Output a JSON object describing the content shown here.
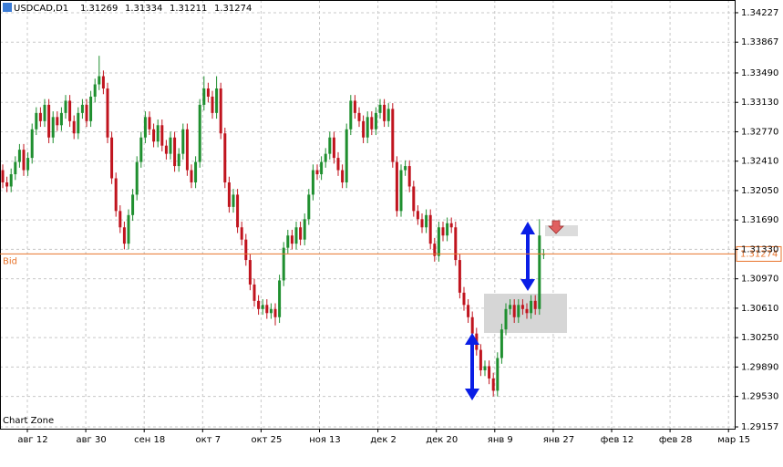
{
  "chart_data": {
    "type": "candlestick",
    "symbol": "USDCAD,D1",
    "open": [
      1.323,
      1.3215,
      1.321,
      1.3225,
      1.324,
      1.3255,
      1.323,
      1.3245,
      1.328,
      1.33,
      1.329,
      1.331,
      1.327,
      1.3295,
      1.3285,
      1.33,
      1.3315,
      1.329,
      1.3275,
      1.33,
      1.331,
      1.329,
      1.332,
      1.3335,
      1.3345,
      1.333,
      1.327,
      1.322,
      1.318,
      1.316,
      1.314,
      1.3175,
      1.32,
      1.324,
      1.327,
      1.3295,
      1.328,
      1.3265,
      1.3285,
      1.326,
      1.325,
      1.327,
      1.3235,
      1.325,
      1.328,
      1.323,
      1.3215,
      1.324,
      1.331,
      1.333,
      1.332,
      1.33,
      1.333,
      1.3275,
      1.3215,
      1.3185,
      1.32,
      1.316,
      1.3145,
      1.312,
      1.309,
      1.307,
      1.306,
      1.3065,
      1.3055,
      1.306,
      1.305,
      1.3095,
      1.3135,
      1.315,
      1.314,
      1.316,
      1.3145,
      1.317,
      1.32,
      1.323,
      1.3225,
      1.324,
      1.325,
      1.327,
      1.3245,
      1.323,
      1.3215,
      1.328,
      1.3315,
      1.33,
      1.329,
      1.327,
      1.3295,
      1.328,
      1.33,
      1.331,
      1.329,
      1.3305,
      1.324,
      1.318,
      1.323,
      1.3235,
      1.321,
      1.318,
      1.317,
      1.316,
      1.3175,
      1.314,
      1.3125,
      1.316,
      1.315,
      1.3165,
      1.316,
      1.312,
      1.308,
      1.3065,
      1.305,
      1.303,
      1.301,
      1.2985,
      1.299,
      1.2975,
      1.296,
      1.3,
      1.3035,
      1.306,
      1.3065,
      1.305,
      1.3065,
      1.306,
      1.3055,
      1.307,
      1.306,
      1.31269
    ],
    "high": [
      1.3237,
      1.3222,
      1.3232,
      1.3247,
      1.3262,
      1.3262,
      1.3252,
      1.3287,
      1.3307,
      1.3307,
      1.3317,
      1.3317,
      1.3302,
      1.3302,
      1.3307,
      1.3322,
      1.3322,
      1.3297,
      1.3307,
      1.3317,
      1.3317,
      1.3327,
      1.3342,
      1.337,
      1.3352,
      1.3337,
      1.3277,
      1.3227,
      1.3187,
      1.3167,
      1.3182,
      1.3207,
      1.3247,
      1.3277,
      1.3302,
      1.3302,
      1.3287,
      1.3292,
      1.3292,
      1.3267,
      1.3277,
      1.3277,
      1.3257,
      1.3287,
      1.3287,
      1.3237,
      1.3247,
      1.3317,
      1.3345,
      1.3337,
      1.3327,
      1.3345,
      1.3337,
      1.3282,
      1.3222,
      1.3207,
      1.3207,
      1.3167,
      1.3152,
      1.3127,
      1.3097,
      1.3077,
      1.3072,
      1.3072,
      1.3067,
      1.3067,
      1.3102,
      1.3142,
      1.3157,
      1.3157,
      1.3167,
      1.3167,
      1.3177,
      1.3207,
      1.3237,
      1.3237,
      1.3247,
      1.3257,
      1.3277,
      1.3277,
      1.3252,
      1.3237,
      1.3287,
      1.3322,
      1.3322,
      1.3307,
      1.3297,
      1.3302,
      1.3302,
      1.3307,
      1.3317,
      1.3317,
      1.3312,
      1.3312,
      1.3247,
      1.3237,
      1.3242,
      1.3242,
      1.3217,
      1.3187,
      1.3177,
      1.3182,
      1.3182,
      1.3147,
      1.3167,
      1.3167,
      1.3172,
      1.3172,
      1.3167,
      1.3127,
      1.3087,
      1.3072,
      1.3057,
      1.3037,
      1.3017,
      1.2997,
      1.2997,
      1.2982,
      1.3007,
      1.3042,
      1.3067,
      1.3072,
      1.3072,
      1.3072,
      1.3072,
      1.3067,
      1.3077,
      1.3077,
      1.317,
      1.31334
    ],
    "low": [
      1.3208,
      1.3203,
      1.3203,
      1.3218,
      1.3233,
      1.3223,
      1.3223,
      1.3238,
      1.3273,
      1.3283,
      1.3283,
      1.3263,
      1.3263,
      1.3278,
      1.3278,
      1.3293,
      1.3283,
      1.3268,
      1.3268,
      1.3293,
      1.3283,
      1.3283,
      1.3313,
      1.3328,
      1.3323,
      1.3263,
      1.3213,
      1.3173,
      1.3153,
      1.3133,
      1.3133,
      1.3168,
      1.3193,
      1.3233,
      1.3263,
      1.3273,
      1.3258,
      1.3258,
      1.3253,
      1.3243,
      1.3243,
      1.3228,
      1.3228,
      1.3243,
      1.3223,
      1.3208,
      1.3208,
      1.3233,
      1.3303,
      1.3313,
      1.3293,
      1.3293,
      1.3268,
      1.3208,
      1.3178,
      1.3178,
      1.3153,
      1.3138,
      1.3113,
      1.3083,
      1.3063,
      1.3053,
      1.3053,
      1.3048,
      1.3048,
      1.304,
      1.3043,
      1.3088,
      1.3128,
      1.3133,
      1.3133,
      1.3138,
      1.3138,
      1.3163,
      1.3193,
      1.3218,
      1.3218,
      1.3233,
      1.3243,
      1.3238,
      1.3223,
      1.3208,
      1.3208,
      1.3273,
      1.3293,
      1.3283,
      1.3263,
      1.3263,
      1.3273,
      1.3273,
      1.3293,
      1.3283,
      1.3283,
      1.3233,
      1.3173,
      1.3173,
      1.3223,
      1.3203,
      1.3173,
      1.3163,
      1.3153,
      1.3153,
      1.3133,
      1.3118,
      1.3118,
      1.3143,
      1.3143,
      1.3153,
      1.3113,
      1.3073,
      1.3058,
      1.3043,
      1.3023,
      1.3003,
      1.2978,
      1.2978,
      1.2968,
      1.2953,
      1.2953,
      1.2993,
      1.3028,
      1.3053,
      1.3043,
      1.3043,
      1.3053,
      1.3048,
      1.3048,
      1.3053,
      1.3053,
      1.31211
    ],
    "close": [
      1.3215,
      1.321,
      1.3225,
      1.324,
      1.3255,
      1.323,
      1.3245,
      1.328,
      1.33,
      1.329,
      1.331,
      1.327,
      1.3295,
      1.3285,
      1.33,
      1.3315,
      1.329,
      1.3275,
      1.33,
      1.331,
      1.329,
      1.332,
      1.3335,
      1.3345,
      1.333,
      1.327,
      1.322,
      1.318,
      1.316,
      1.314,
      1.3175,
      1.32,
      1.324,
      1.327,
      1.3295,
      1.328,
      1.3265,
      1.3285,
      1.326,
      1.325,
      1.327,
      1.3235,
      1.325,
      1.328,
      1.323,
      1.3215,
      1.324,
      1.331,
      1.333,
      1.332,
      1.33,
      1.333,
      1.3275,
      1.3215,
      1.3185,
      1.32,
      1.316,
      1.3145,
      1.312,
      1.309,
      1.307,
      1.306,
      1.3065,
      1.3055,
      1.306,
      1.305,
      1.3095,
      1.3135,
      1.315,
      1.314,
      1.316,
      1.3145,
      1.317,
      1.32,
      1.323,
      1.3225,
      1.324,
      1.325,
      1.327,
      1.3245,
      1.323,
      1.3215,
      1.328,
      1.3315,
      1.33,
      1.329,
      1.327,
      1.3295,
      1.328,
      1.33,
      1.331,
      1.329,
      1.3305,
      1.324,
      1.318,
      1.323,
      1.3235,
      1.321,
      1.318,
      1.317,
      1.316,
      1.3175,
      1.314,
      1.3125,
      1.316,
      1.315,
      1.3165,
      1.316,
      1.312,
      1.308,
      1.3065,
      1.305,
      1.303,
      1.301,
      1.2985,
      1.299,
      1.2975,
      1.296,
      1.3,
      1.3035,
      1.306,
      1.3065,
      1.305,
      1.3065,
      1.306,
      1.3055,
      1.307,
      1.306,
      1.315,
      1.31274
    ],
    "ylim": [
      1.29135,
      1.34383
    ],
    "yticks": [
      1.34227,
      1.33867,
      {
        "value": 1.3349,
        "label": "1.33490"
      },
      {
        "value": 1.3313,
        "label": "1.33130"
      },
      {
        "value": 1.3277,
        "label": "1.32770"
      },
      {
        "value": 1.3241,
        "label": "1.32410"
      },
      {
        "value": 1.3205,
        "label": "1.32050"
      },
      {
        "value": 1.3169,
        "label": "1.31690"
      },
      {
        "value": 1.3133,
        "label": "1.31330"
      },
      {
        "value": 1.3097,
        "label": "1.30970"
      },
      {
        "value": 1.3061,
        "label": "1.30610"
      },
      {
        "value": 1.3025,
        "label": "1.30250"
      },
      {
        "value": 1.2989,
        "label": "1.29890"
      },
      {
        "value": 1.2953,
        "label": "1.29530"
      },
      1.29157
    ],
    "xtick_labels": [
      "авг 12",
      "авг 30",
      "сен 18",
      "окт 7",
      "окт 25",
      "ноя 13",
      "дек 2",
      "дек 20",
      "янв 9",
      "янв 27",
      "фев 12",
      "фев 28",
      "мар 15"
    ],
    "bid_label": "Bid",
    "bid": 1.31274,
    "watermark": "Chart Zone",
    "grid": true,
    "up_color": "#1f8f2f",
    "down_color": "#c0141e"
  }
}
